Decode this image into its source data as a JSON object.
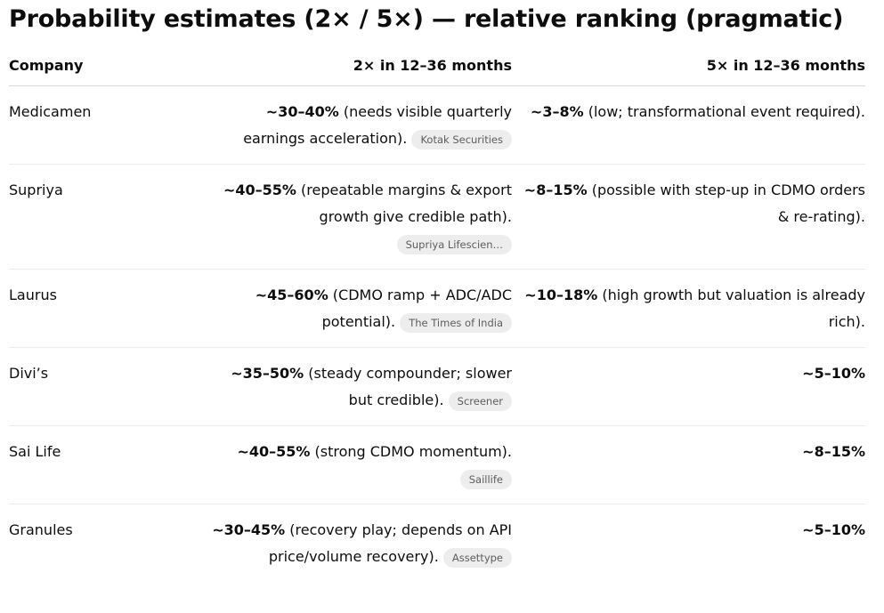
{
  "title": "Probability estimates (2× / 5×) — relative ranking (pragmatic)",
  "colors": {
    "text": "#0d0d0d",
    "pill_background": "#ededed",
    "pill_text": "#5d5d5d",
    "header_divider": "#d9d9d9",
    "row_divider": "#ececec",
    "background": "#ffffff"
  },
  "table": {
    "columns": [
      {
        "label": "Company",
        "align": "left"
      },
      {
        "label": "2× in 12–36 months",
        "align": "right"
      },
      {
        "label": "5× in 12–36 months",
        "align": "right"
      }
    ],
    "rows": [
      {
        "company": "Medicamen",
        "p2x": {
          "pct": "~30–40%",
          "note": " (needs visible quarterly earnings acceleration).",
          "citation": "Kotak Securities"
        },
        "p5x": {
          "pct": "~3–8%",
          "note": " (low; transformational event required)."
        }
      },
      {
        "company": "Supriya",
        "p2x": {
          "pct": "~40–55%",
          "note": " (repeatable margins & export growth give credible path).",
          "citation": "Supriya Lifescien…"
        },
        "p5x": {
          "pct": "~8–15%",
          "note": " (possible with step-up in CDMO orders & re-rating)."
        }
      },
      {
        "company": "Laurus",
        "p2x": {
          "pct": "~45–60%",
          "note": " (CDMO ramp + ADC/ADC potential).",
          "citation": "The Times of India"
        },
        "p5x": {
          "pct": "~10–18%",
          "note": " (high growth but valuation is already rich)."
        }
      },
      {
        "company": "Divi’s",
        "p2x": {
          "pct": "~35–50%",
          "note": " (steady compounder; slower but credible).",
          "citation": "Screener"
        },
        "p5x": {
          "pct": "~5–10%",
          "note": ""
        }
      },
      {
        "company": "Sai Life",
        "p2x": {
          "pct": "~40–55%",
          "note": " (strong CDMO momentum).",
          "citation": "Saillife"
        },
        "p5x": {
          "pct": "~8–15%",
          "note": ""
        }
      },
      {
        "company": "Granules",
        "p2x": {
          "pct": "~30–45%",
          "note": " (recovery play; depends on API price/volume recovery).",
          "citation": "Assettype"
        },
        "p5x": {
          "pct": "~5–10%",
          "note": ""
        }
      }
    ]
  }
}
